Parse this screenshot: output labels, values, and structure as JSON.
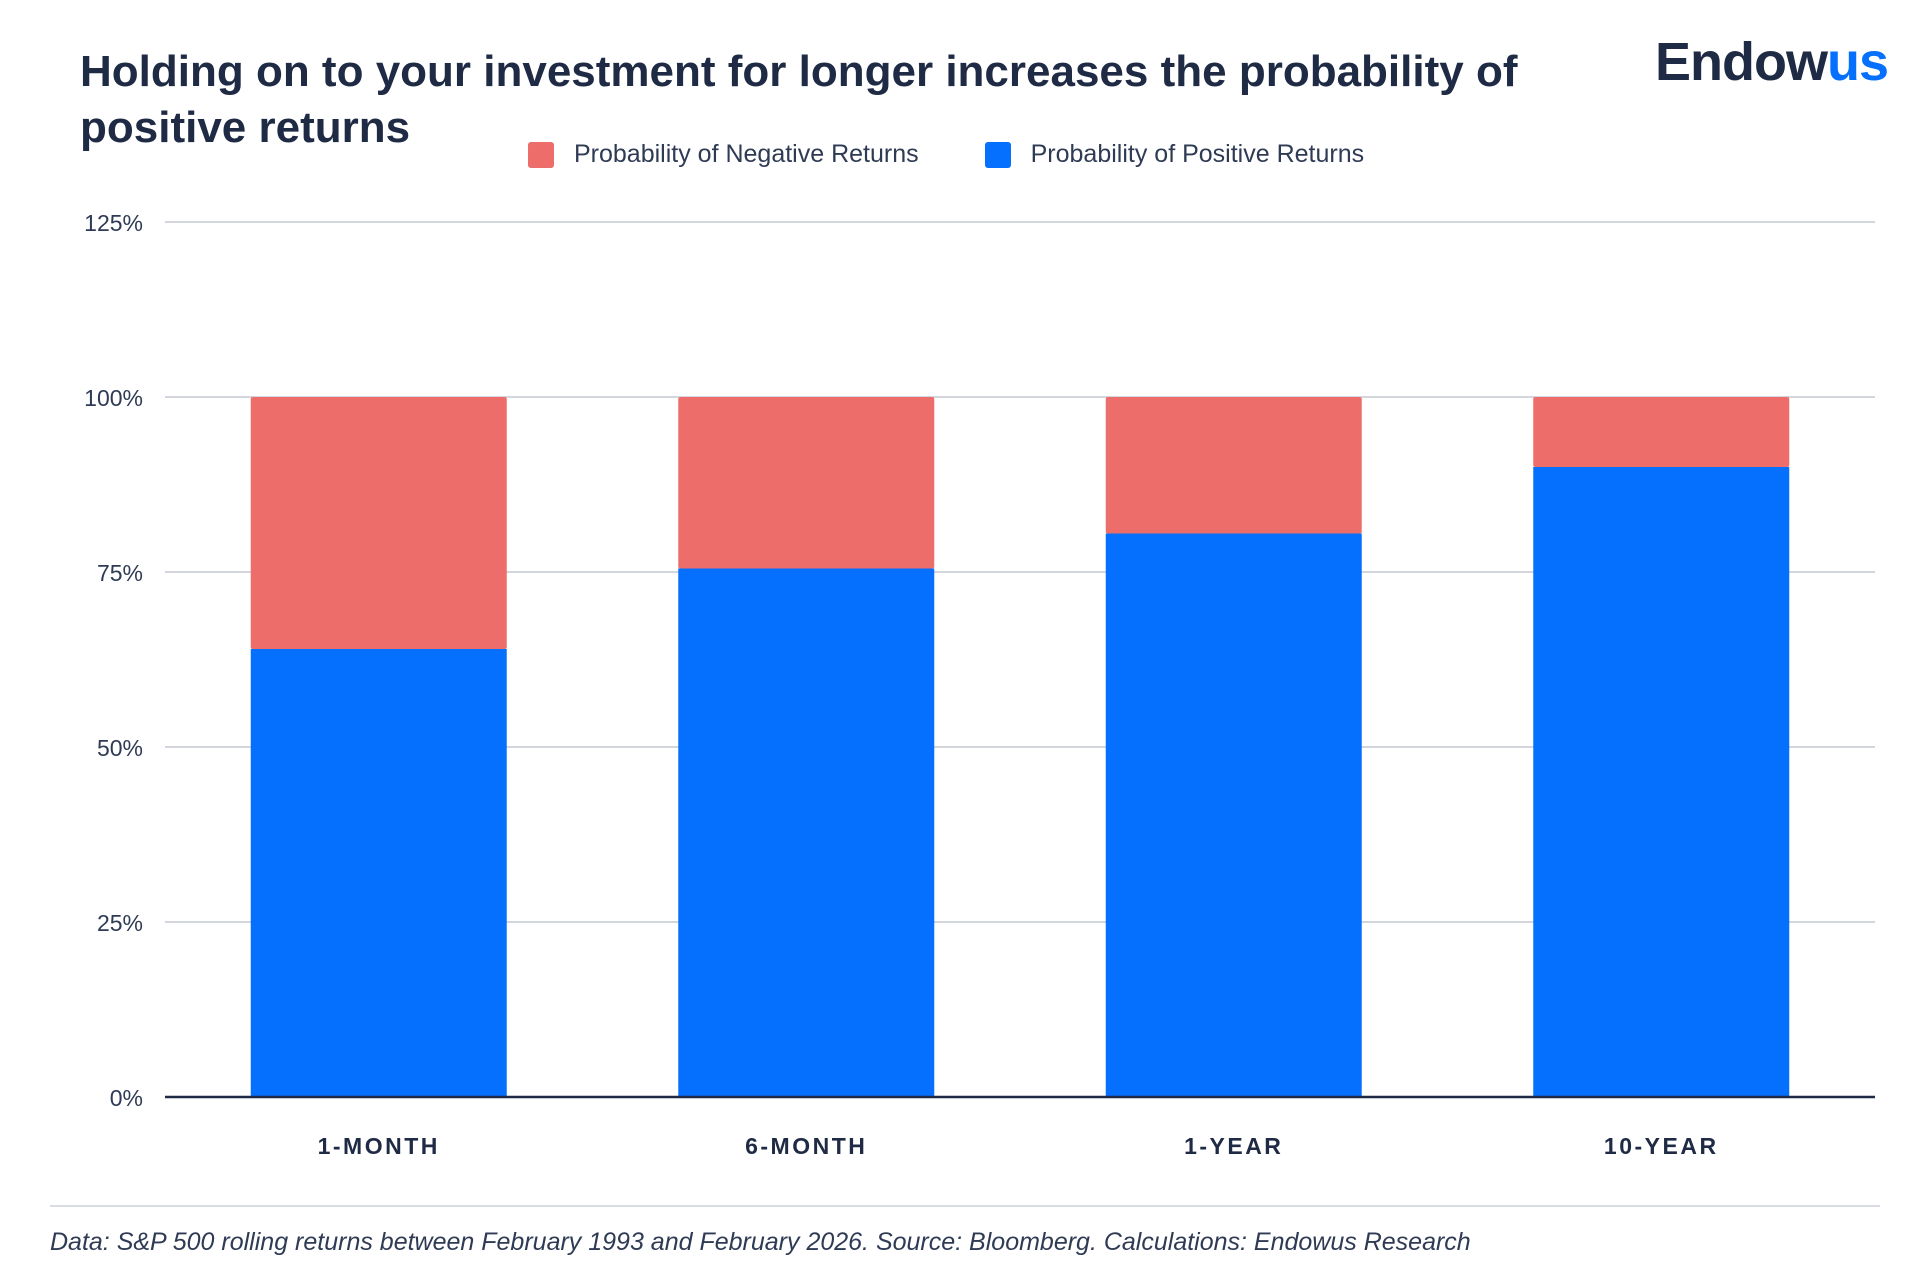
{
  "header": {
    "title": "Holding on to your investment for longer increases the probability of positive returns",
    "logo_part1": "Endow",
    "logo_part2": "us"
  },
  "legend": {
    "items": [
      {
        "label": "Probability of Negative Returns",
        "color": "#ec6d69"
      },
      {
        "label": "Probability of Positive Returns",
        "color": "#0670fe"
      }
    ]
  },
  "footnote": "Data: S&P 500 rolling returns between February 1993 and February 2026. Source: Bloomberg. Calculations: Endowus Research",
  "chart_data": {
    "type": "bar",
    "stacked": true,
    "title": "Holding on to your investment for longer increases the probability of positive returns",
    "categories": [
      "1-MONTH",
      "6-MONTH",
      "1-YEAR",
      "10-YEAR"
    ],
    "series": [
      {
        "name": "Probability of Positive Returns",
        "color": "#0670fe",
        "values": [
          64,
          75.5,
          80.5,
          90
        ]
      },
      {
        "name": "Probability of Negative Returns",
        "color": "#ec6d69",
        "values": [
          36,
          24.5,
          19.5,
          10
        ]
      }
    ],
    "ylim": [
      0,
      125
    ],
    "yticks": [
      "0%",
      "25%",
      "50%",
      "75%",
      "100%",
      "125%"
    ],
    "ytick_values": [
      0,
      25,
      50,
      75,
      100,
      125
    ],
    "grid": true,
    "legend_position": "top"
  }
}
